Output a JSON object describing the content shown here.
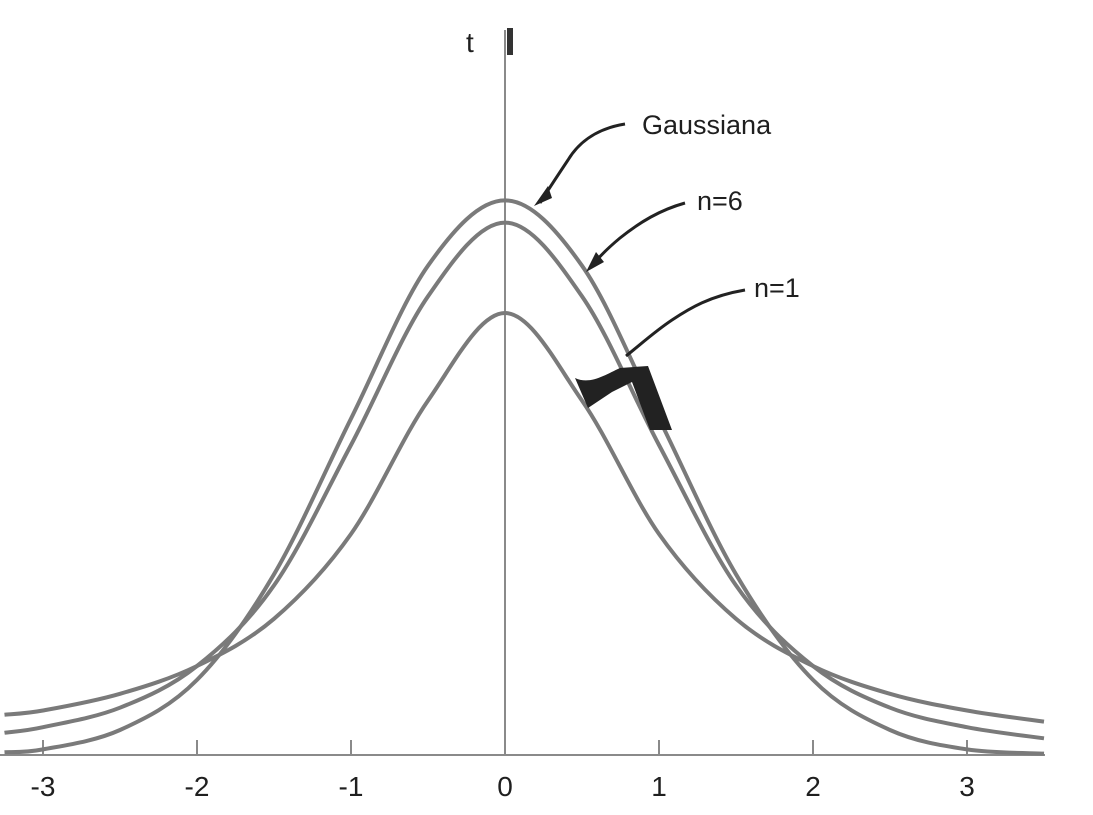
{
  "chart_data": {
    "type": "line",
    "ylabel": "t",
    "xlim": [
      -3.3,
      3.5
    ],
    "ylim": [
      0,
      0.4
    ],
    "x_ticks": [
      {
        "value": -3,
        "label": "-3"
      },
      {
        "value": -2,
        "label": "-2"
      },
      {
        "value": -1,
        "label": "-1"
      },
      {
        "value": 0,
        "label": "0"
      },
      {
        "value": 1,
        "label": "1"
      },
      {
        "value": 2,
        "label": "2"
      },
      {
        "value": 3,
        "label": "3"
      }
    ],
    "series": [
      {
        "name": "Gaussiana",
        "x": [
          -3.25,
          -3,
          -2.5,
          -2,
          -1.5,
          -1,
          -0.5,
          0,
          0.5,
          1,
          1.5,
          2,
          2.5,
          3,
          3.5
        ],
        "y": [
          0.002,
          0.004,
          0.018,
          0.054,
          0.13,
          0.242,
          0.352,
          0.399,
          0.352,
          0.242,
          0.13,
          0.054,
          0.018,
          0.004,
          0.001
        ]
      },
      {
        "name": "n=6",
        "x": [
          -3.25,
          -3,
          -2.5,
          -2,
          -1.5,
          -1,
          -0.5,
          0,
          0.5,
          1,
          1.5,
          2,
          2.5,
          3,
          3.5
        ],
        "y": [
          0.016,
          0.02,
          0.034,
          0.064,
          0.122,
          0.223,
          0.33,
          0.383,
          0.33,
          0.223,
          0.122,
          0.064,
          0.034,
          0.02,
          0.012
        ]
      },
      {
        "name": "n=1",
        "x": [
          -3.25,
          -3,
          -2.5,
          -2,
          -1.5,
          -1,
          -0.5,
          0,
          0.5,
          1,
          1.5,
          2,
          2.5,
          3,
          3.5
        ],
        "y": [
          0.029,
          0.032,
          0.044,
          0.064,
          0.098,
          0.159,
          0.255,
          0.318,
          0.255,
          0.159,
          0.098,
          0.064,
          0.044,
          0.032,
          0.024
        ]
      }
    ],
    "colors": {
      "curves": "#7a7a7a",
      "axis": "#8a8a8a",
      "text": "#1f1f1f"
    }
  }
}
